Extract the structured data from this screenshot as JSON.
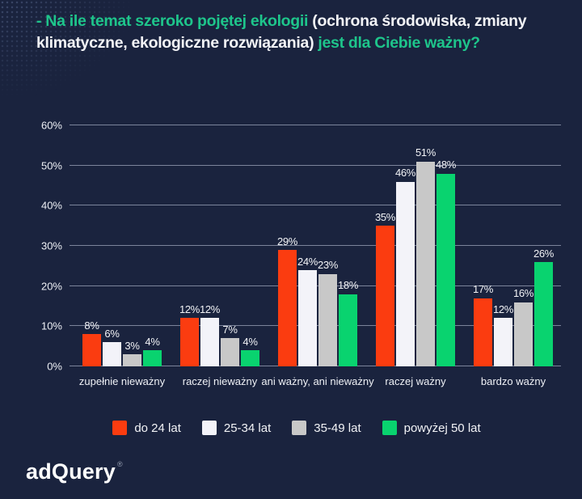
{
  "title": {
    "lines": [
      {
        "parts": [
          {
            "text": "- Na ile temat szeroko pojętej ekologii ",
            "tone": "accent"
          },
          {
            "text": "(ochrona środowiska, zmiany",
            "tone": "white"
          }
        ]
      },
      {
        "parts": [
          {
            "text": "klimatyczne, ekologiczne rozwiązania) ",
            "tone": "white"
          },
          {
            "text": "jest dla Ciebie ważny?",
            "tone": "accent"
          }
        ]
      }
    ]
  },
  "colors": {
    "background": "#1a233e",
    "accent_green": "#1ec58b",
    "text_white": "#f2f3f6",
    "gridline": "rgba(205,213,231,0.55)"
  },
  "chart_data": {
    "type": "bar",
    "title": "- Na ile temat szeroko pojętej ekologii (ochrona środowiska, zmiany klimatyczne, ekologiczne rozwiązania) jest dla Ciebie ważny?",
    "categories": [
      "zupełnie nieważny",
      "raczej nieważny",
      "ani ważny, ani nieważny",
      "raczej ważny",
      "bardzo ważny"
    ],
    "series": [
      {
        "name": "do 24 lat",
        "color": "#fb3c10",
        "values": [
          8,
          12,
          29,
          35,
          17
        ]
      },
      {
        "name": "25-34 lat",
        "color": "#f3f3f9",
        "values": [
          6,
          12,
          24,
          46,
          12
        ]
      },
      {
        "name": "35-49 lat",
        "color": "#c8c8c8",
        "values": [
          3,
          7,
          23,
          51,
          16
        ]
      },
      {
        "name": "powyżej 50 lat",
        "color": "#09d36f",
        "values": [
          4,
          4,
          18,
          48,
          26
        ]
      }
    ],
    "ylim": [
      0,
      60
    ],
    "yticks": [
      0,
      10,
      20,
      30,
      40,
      50,
      60
    ],
    "ytick_suffix": "%",
    "value_suffix": "%",
    "grid": "horizontal",
    "legend_position": "bottom"
  },
  "logo": {
    "text": "adQuery",
    "mark": "®"
  }
}
